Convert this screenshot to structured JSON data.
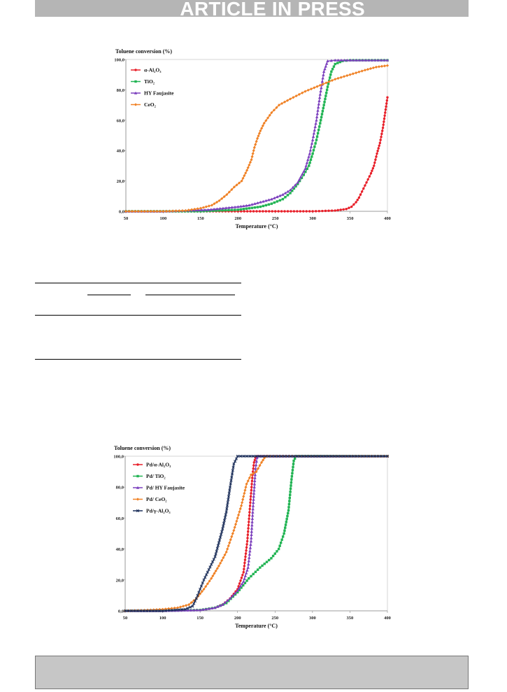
{
  "header": {
    "banner_text": "ARTICLE IN PRESS"
  },
  "chart_data": [
    {
      "type": "line",
      "title": "",
      "ylabel": "Toluene conversion (%)",
      "xlabel": "Temperature (°C)",
      "xlim": [
        50,
        400
      ],
      "ylim": [
        0,
        100
      ],
      "xticks": [
        "50",
        "100",
        "150",
        "200",
        "250",
        "300",
        "350",
        "400"
      ],
      "yticks": [
        "0,0",
        "20,0",
        "40,0",
        "60,0",
        "80,0",
        "100,0"
      ],
      "legend_position": "top-left",
      "series": [
        {
          "name": "α-Al₂O₃",
          "color": "#e8202a",
          "marker": "circle",
          "x": [
            50,
            100,
            150,
            200,
            250,
            300,
            330,
            345,
            352,
            358,
            362,
            366,
            370,
            374,
            378,
            382,
            386,
            390,
            394,
            397,
            400
          ],
          "y": [
            0,
            0,
            0,
            0,
            0,
            0,
            0.5,
            1.5,
            3,
            6,
            9,
            13,
            17,
            21,
            25,
            30,
            38,
            45,
            55,
            65,
            75
          ]
        },
        {
          "name": "TiO₂",
          "color": "#22b454",
          "marker": "square",
          "x": [
            50,
            100,
            150,
            200,
            215,
            230,
            245,
            260,
            270,
            280,
            288,
            295,
            300,
            305,
            310,
            315,
            320,
            325,
            330,
            340,
            350,
            400
          ],
          "y": [
            0,
            0,
            0,
            1,
            2,
            3,
            5,
            8,
            12,
            18,
            24,
            30,
            38,
            47,
            58,
            70,
            82,
            92,
            97,
            99,
            99.5,
            99.5
          ]
        },
        {
          "name": "HY Faujasite",
          "color": "#7b3fbd",
          "marker": "triangle",
          "x": [
            50,
            100,
            130,
            160,
            180,
            200,
            215,
            230,
            245,
            260,
            270,
            280,
            290,
            296,
            300,
            305,
            310,
            315,
            320,
            330,
            400
          ],
          "y": [
            0,
            0,
            0.5,
            1,
            2,
            3,
            4,
            6,
            8,
            11,
            14,
            19,
            28,
            38,
            47,
            60,
            77,
            92,
            99,
            99.5,
            99.5
          ]
        },
        {
          "name": "CeO₂",
          "color": "#f08226",
          "marker": "diamond",
          "x": [
            50,
            100,
            130,
            150,
            165,
            175,
            185,
            195,
            205,
            212,
            218,
            222,
            226,
            230,
            235,
            245,
            255,
            270,
            290,
            310,
            330,
            350,
            370,
            385,
            400
          ],
          "y": [
            0,
            0,
            0.5,
            2,
            4,
            7,
            11,
            16,
            20,
            27,
            34,
            42,
            48,
            53,
            58,
            65,
            70,
            74,
            79,
            83,
            87,
            90,
            93,
            95,
            96
          ]
        }
      ]
    },
    {
      "type": "line",
      "title": "",
      "ylabel": "Toluene conversion (%)",
      "xlabel": "Temperature (°C)",
      "xlim": [
        50,
        400
      ],
      "ylim": [
        0,
        100
      ],
      "xticks": [
        "50",
        "100",
        "150",
        "200",
        "250",
        "300",
        "350",
        "400"
      ],
      "yticks": [
        "0,0",
        "20,0",
        "40,0",
        "60,0",
        "80,0",
        "100,0"
      ],
      "legend_position": "top-left",
      "series": [
        {
          "name": "Pd/α-Al₂O₃",
          "color": "#e8202a",
          "marker": "circle",
          "x": [
            50,
            100,
            150,
            170,
            180,
            190,
            200,
            208,
            213,
            217,
            220,
            222,
            224,
            226,
            230,
            400
          ],
          "y": [
            0,
            0,
            0.5,
            2,
            4,
            8,
            14,
            25,
            45,
            70,
            88,
            96,
            99,
            100,
            100,
            100
          ]
        },
        {
          "name": "Pd/ TiO₂",
          "color": "#22b454",
          "marker": "square",
          "x": [
            50,
            100,
            150,
            170,
            185,
            200,
            215,
            230,
            245,
            255,
            262,
            268,
            272,
            275,
            278,
            400
          ],
          "y": [
            0,
            0,
            0.5,
            2,
            5,
            12,
            21,
            28,
            34,
            40,
            50,
            65,
            85,
            97,
            100,
            100
          ]
        },
        {
          "name": "Pd/ HY Faujasite",
          "color": "#7b3fbd",
          "marker": "triangle",
          "x": [
            50,
            100,
            150,
            170,
            180,
            190,
            200,
            208,
            214,
            218,
            221,
            224,
            226,
            228,
            400
          ],
          "y": [
            0,
            0,
            0.5,
            2,
            4,
            8,
            13,
            19,
            28,
            45,
            70,
            92,
            99,
            100,
            100
          ]
        },
        {
          "name": "Pd/ CeO₂",
          "color": "#f08226",
          "marker": "diamond",
          "x": [
            50,
            80,
            100,
            120,
            135,
            145,
            155,
            165,
            175,
            185,
            195,
            205,
            212,
            218,
            225,
            232,
            236,
            240,
            400
          ],
          "y": [
            0,
            0.5,
            1,
            2,
            4,
            8,
            14,
            21,
            29,
            38,
            52,
            68,
            82,
            88,
            90,
            96,
            99,
            100,
            100
          ]
        },
        {
          "name": "Pd/γ-Al₂O₃",
          "color": "#1c2f5a",
          "marker": "x",
          "x": [
            50,
            100,
            130,
            140,
            145,
            150,
            155,
            160,
            165,
            170,
            175,
            180,
            185,
            190,
            195,
            200,
            400
          ],
          "y": [
            0,
            0,
            1,
            3,
            8,
            14,
            20,
            25,
            30,
            35,
            44,
            53,
            64,
            80,
            95,
            100,
            100
          ]
        }
      ]
    }
  ]
}
